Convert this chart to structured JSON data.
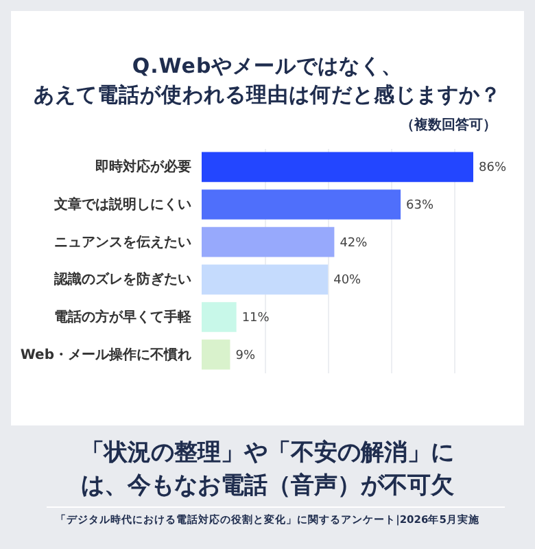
{
  "chart_data": {
    "type": "bar",
    "orientation": "horizontal",
    "title": "Q.Webやメールではなく、あえて電話が使われる理由は何だと感じますか？",
    "subtitle": "（複数回答可）",
    "categories": [
      "即時対応が必要",
      "文章では説明しにくい",
      "ニュアンスを伝えたい",
      "認識のズレを防ぎたい",
      "電話の方が早くて手軽",
      "Web・メール操作に不慣れ"
    ],
    "values": [
      86,
      63,
      42,
      40,
      11,
      9
    ],
    "colors": [
      "#2346ff",
      "#4f6ffb",
      "#97a9fc",
      "#c5dbfd",
      "#c8f8e9",
      "#d9f2cc"
    ],
    "value_labels": [
      "86%",
      "63%",
      "42%",
      "40%",
      "11%",
      "9%"
    ],
    "xticks": [
      {
        "value": 20,
        "label": null
      },
      {
        "value": 40,
        "label": null
      },
      {
        "value": 60,
        "label": null
      },
      {
        "value": 80,
        "label": null
      }
    ],
    "grid": "x",
    "tick_labels": "y",
    "annotations": [
      "「状況の整理」や「不安の解消」には、今もなお電話（音声）が不可欠",
      "「デジタル時代における電話対応の役割と変化」に関するアンケート|2026年5月実施"
    ]
  }
}
